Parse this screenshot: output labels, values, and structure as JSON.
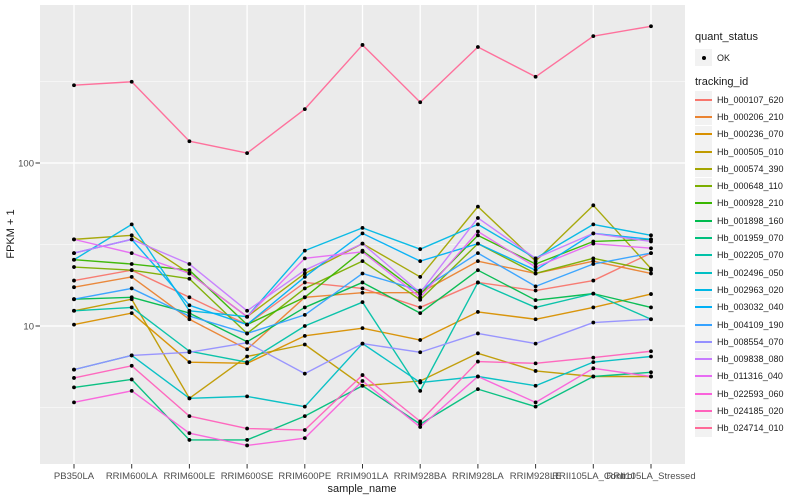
{
  "figure": {
    "x_axis": {
      "title": "sample_name"
    },
    "y_axis": {
      "title": "FPKM + 1",
      "ticks": [
        "100",
        "10"
      ]
    },
    "colors": {
      "panel_bg": "#EBEBEB",
      "grid": "#FFFFFF",
      "point": "#000000",
      "axis_text": "#4D4D4D",
      "legend_key_bg": "#F2F2F2"
    }
  },
  "legend": {
    "quant_status": {
      "title": "quant_status",
      "items": [
        {
          "label": "OK",
          "key": "point"
        }
      ]
    },
    "tracking_id": {
      "title": "tracking_id"
    }
  },
  "chart_data": {
    "type": "line",
    "x_type": "categorical",
    "title": "",
    "xlabel": "sample_name",
    "ylabel": "FPKM + 1",
    "y_scale": "log10",
    "y_ticks_major": [
      10,
      100
    ],
    "y_gridlines_minor": [
      3.162,
      31.62,
      316.2
    ],
    "ylim": [
      1.4,
      930
    ],
    "grid": true,
    "legend_position": "right",
    "point_shape": "filled-circle",
    "point_color": "#000000",
    "quant_status": "OK",
    "categories": [
      "PB350LA",
      "RRIM600LA",
      "RRIM600LE",
      "RRIM600SE",
      "RRIM600PE",
      "RRIM901LA",
      "RRIM928BA",
      "RRIM928LA",
      "RRIM928LE",
      "RRII105LA_Control",
      "RRII105LA_Stressed"
    ],
    "series": [
      {
        "name": "Hb_000107_620",
        "color": "#F8766D",
        "values": [
          19,
          22,
          15,
          10.2,
          18.5,
          17,
          13,
          18.5,
          16.5,
          19,
          28
        ]
      },
      {
        "name": "Hb_000206_210",
        "color": "#EA8331",
        "values": [
          17.3,
          20,
          11,
          7.2,
          15,
          16,
          16,
          25,
          21,
          25,
          21
        ]
      },
      {
        "name": "Hb_000236_070",
        "color": "#D89000",
        "values": [
          10.2,
          12,
          6,
          5.9,
          8.7,
          9.7,
          8.2,
          12.2,
          11,
          13,
          15.7
        ]
      },
      {
        "name": "Hb_000505_010",
        "color": "#C09B00",
        "values": [
          12.4,
          14.6,
          3.6,
          6.5,
          7.7,
          4.3,
          4.6,
          6.8,
          5.3,
          4.9,
          4.9
        ]
      },
      {
        "name": "Hb_000574_390",
        "color": "#A3A500",
        "values": [
          34,
          36,
          21,
          11.4,
          21,
          32,
          20,
          54,
          25,
          55,
          22.5
        ]
      },
      {
        "name": "Hb_000648_110",
        "color": "#7CAE00",
        "values": [
          23,
          22,
          19.5,
          9,
          17,
          25,
          14.5,
          32,
          21,
          26,
          22
        ]
      },
      {
        "name": "Hb_000928_210",
        "color": "#39B600",
        "values": [
          25.5,
          24,
          22,
          10.2,
          15,
          29,
          15.7,
          36,
          24,
          33,
          34
        ]
      },
      {
        "name": "Hb_001898_160",
        "color": "#00BB4E",
        "values": [
          14.6,
          15,
          12,
          8,
          13,
          18.5,
          12,
          22,
          14.4,
          15.8,
          13
        ]
      },
      {
        "name": "Hb_001959_070",
        "color": "#00BF7D",
        "values": [
          4.2,
          4.7,
          2,
          2,
          2.8,
          4.3,
          2.5,
          4.1,
          3.2,
          4.9,
          5.2
        ]
      },
      {
        "name": "Hb_002205_070",
        "color": "#00C1A7",
        "values": [
          12.4,
          13,
          7,
          6,
          10,
          14,
          4,
          18.5,
          13,
          15.8,
          11
        ]
      },
      {
        "name": "Hb_002496_050",
        "color": "#00BFC4",
        "values": [
          5.4,
          6.6,
          3.6,
          3.7,
          3.2,
          7.8,
          4.5,
          4.9,
          4.3,
          6,
          6.5
        ]
      },
      {
        "name": "Hb_002963_020",
        "color": "#00B8E5",
        "values": [
          25.5,
          42,
          12.4,
          11.4,
          29,
          40,
          29.6,
          42,
          26,
          42,
          36
        ]
      },
      {
        "name": "Hb_003032_040",
        "color": "#00B0F6",
        "values": [
          28,
          34,
          13.4,
          10.2,
          20,
          37,
          25,
          32,
          22,
          37,
          34
        ]
      },
      {
        "name": "Hb_004109_190",
        "color": "#35A2FF",
        "values": [
          14.6,
          17,
          11.5,
          9,
          11.7,
          21,
          16.5,
          28,
          17.5,
          24,
          28
        ]
      },
      {
        "name": "Hb_008554_070",
        "color": "#9590FF",
        "values": [
          5.4,
          6.6,
          6.9,
          7.9,
          5.1,
          7.8,
          6.9,
          9,
          7.8,
          10.5,
          11
        ]
      },
      {
        "name": "Hb_009838_080",
        "color": "#C77CFF",
        "values": [
          28,
          34,
          24,
          12.4,
          22,
          32,
          16,
          46,
          26,
          37,
          33
        ]
      },
      {
        "name": "Hb_011316_040",
        "color": "#E76BF3",
        "values": [
          34,
          28,
          21,
          11.4,
          26,
          28.5,
          15,
          38,
          23,
          32,
          30
        ]
      },
      {
        "name": "Hb_022593_060",
        "color": "#FA62DB",
        "values": [
          3.4,
          4,
          2.2,
          1.85,
          2.05,
          4.6,
          2.4,
          4.9,
          3.4,
          5.5,
          4.9
        ]
      },
      {
        "name": "Hb_024185_020",
        "color": "#FF62BC",
        "values": [
          4.8,
          5.7,
          2.8,
          2.35,
          2.3,
          5,
          2.6,
          6.05,
          5.9,
          6.4,
          7
        ]
      },
      {
        "name": "Hb_024714_010",
        "color": "#FF6A98",
        "values": [
          300,
          315,
          136,
          115,
          214,
          530,
          236,
          515,
          338,
          600,
          690
        ]
      }
    ]
  }
}
